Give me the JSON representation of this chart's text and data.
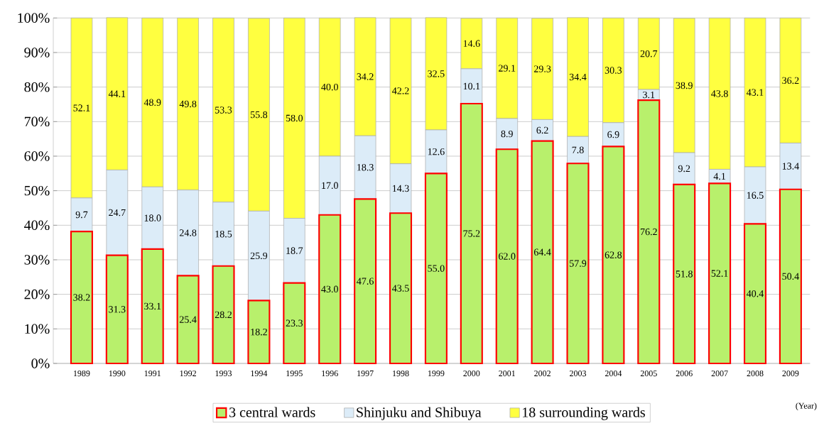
{
  "chart_data": {
    "type": "bar",
    "stacked": true,
    "xlabel": "(Year)",
    "categories": [
      "1989",
      "1990",
      "1991",
      "1992",
      "1993",
      "1994",
      "1995",
      "1996",
      "1997",
      "1998",
      "1999",
      "2000",
      "2001",
      "2002",
      "2003",
      "2004",
      "2005",
      "2006",
      "2007",
      "2008",
      "2009"
    ],
    "series": [
      {
        "name": "3 central wards",
        "color": "#b8f06c",
        "values": [
          38.2,
          31.3,
          33.1,
          25.4,
          28.2,
          18.2,
          23.3,
          43.0,
          47.6,
          43.5,
          55.0,
          75.2,
          62.0,
          64.4,
          57.9,
          62.8,
          76.2,
          51.8,
          52.1,
          40.4,
          50.4
        ],
        "value_labels": [
          "38.2",
          "31.3",
          "33.1",
          "25.4",
          "28.2",
          "18.2",
          "23.3",
          "43.0",
          "47.6",
          "43.5",
          "55.0",
          "75.2",
          "62.0",
          "64.4",
          "57.9",
          "62.8",
          "76.2",
          "51.8",
          "52.1",
          "40.4",
          "50.4"
        ]
      },
      {
        "name": "Shinjuku and Shibuya",
        "color": "#dcecf8",
        "values": [
          9.7,
          24.7,
          18.0,
          24.8,
          18.5,
          25.9,
          18.7,
          17.0,
          18.3,
          14.3,
          12.6,
          10.1,
          8.9,
          6.2,
          7.8,
          6.9,
          3.1,
          9.2,
          4.1,
          16.5,
          13.4
        ],
        "value_labels": [
          "9.7",
          "24.7",
          "18.0",
          "24.8",
          "18.5",
          "25.9",
          "18.7",
          "17.0",
          "18.3",
          "14.3",
          "12.6",
          "10.1",
          "8.9",
          "6.2",
          "7.8",
          "6.9",
          "3.1",
          "9.2",
          "4.1",
          "16.5",
          "13.4"
        ]
      },
      {
        "name": "18 surrounding wards",
        "color": "#ffff40",
        "values": [
          52.1,
          44.1,
          48.9,
          49.8,
          53.3,
          55.8,
          58.0,
          40.0,
          34.2,
          42.2,
          32.5,
          14.6,
          29.1,
          29.3,
          34.4,
          30.3,
          20.7,
          38.9,
          43.8,
          43.1,
          36.2
        ],
        "value_labels": [
          "52.1",
          "44.1",
          "48.9",
          "49.8",
          "53.3",
          "55.8",
          "58.0",
          "40.0",
          "34.2",
          "42.2",
          "32.5",
          "14.6",
          "29.1",
          "29.3",
          "34.4",
          "30.3",
          "20.7",
          "38.9",
          "43.8",
          "43.1",
          "36.2"
        ]
      }
    ],
    "ylim": [
      0,
      100
    ],
    "yticks": [
      {
        "value": 0,
        "label": "0%"
      },
      {
        "value": 10,
        "label": "10%"
      },
      {
        "value": 20,
        "label": "20%"
      },
      {
        "value": 30,
        "label": "30%"
      },
      {
        "value": 40,
        "label": "40%"
      },
      {
        "value": 50,
        "label": "50%"
      },
      {
        "value": 60,
        "label": "60%"
      },
      {
        "value": 70,
        "label": "70%"
      },
      {
        "value": 80,
        "label": "80%"
      },
      {
        "value": 90,
        "label": "90%"
      },
      {
        "value": 100,
        "label": "100%"
      }
    ],
    "grid": "y",
    "legend": "bottom"
  }
}
